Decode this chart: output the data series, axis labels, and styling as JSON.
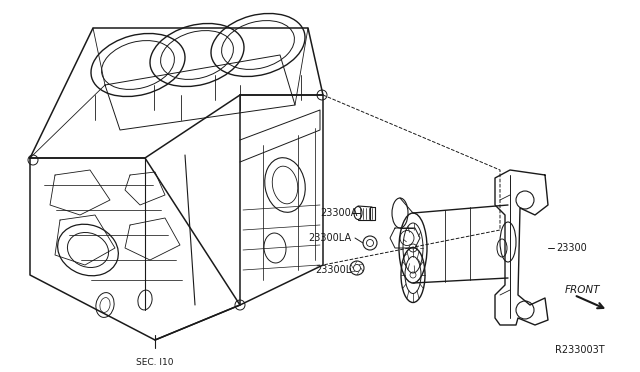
{
  "background_color": "#ffffff",
  "line_color": "#1a1a1a",
  "text_color": "#1a1a1a",
  "fig_width": 6.4,
  "fig_height": 3.72,
  "dpi": 100,
  "label_23300A": "23300A",
  "label_23300LA": "23300LA",
  "label_23300L": "23300L",
  "label_23300": "23300",
  "label_FRONT": "FRONT",
  "label_SEC": "SEC. I10",
  "label_ref": "R233003T"
}
